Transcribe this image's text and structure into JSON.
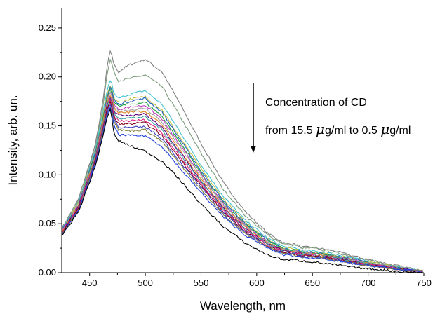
{
  "chart_data": {
    "type": "line",
    "xlabel": "Wavelength, nm",
    "ylabel": "Intensity, arb. un.",
    "xlim": [
      425,
      750
    ],
    "ylim": [
      0.0,
      0.27
    ],
    "x_ticks": [
      450,
      500,
      550,
      600,
      650,
      700,
      750
    ],
    "y_ticks": [
      0.0,
      0.05,
      0.1,
      0.15,
      0.2,
      0.25
    ],
    "x_tick_labels": [
      "450",
      "500",
      "550",
      "600",
      "650",
      "700",
      "750"
    ],
    "y_tick_labels": [
      "0.00",
      "0.05",
      "0.10",
      "0.15",
      "0.20",
      "0.25"
    ],
    "grid": false,
    "legend": "none",
    "annotation": {
      "line1": "Concentration of CD",
      "line2_prefix": "from 15.5 ",
      "mu": "μ",
      "line2_mid": "g/ml to 0.5 ",
      "line2_suffix": "g/ml",
      "arrow_direction": "down"
    },
    "x": [
      425,
      440,
      455,
      462,
      466,
      469,
      472,
      476,
      485,
      500,
      515,
      530,
      550,
      570,
      590,
      610,
      625,
      635,
      640,
      650,
      670,
      690,
      710,
      730,
      750
    ],
    "series": [
      {
        "color": "#808080",
        "values": [
          0.045,
          0.075,
          0.13,
          0.175,
          0.213,
          0.228,
          0.212,
          0.205,
          0.212,
          0.218,
          0.205,
          0.175,
          0.132,
          0.092,
          0.062,
          0.04,
          0.03,
          0.029,
          0.026,
          0.026,
          0.022,
          0.016,
          0.011,
          0.006,
          0.002
        ]
      },
      {
        "color": "#7a9a7a",
        "values": [
          0.045,
          0.073,
          0.127,
          0.17,
          0.205,
          0.219,
          0.205,
          0.196,
          0.198,
          0.202,
          0.19,
          0.162,
          0.122,
          0.085,
          0.058,
          0.038,
          0.029,
          0.028,
          0.025,
          0.025,
          0.021,
          0.015,
          0.01,
          0.006,
          0.002
        ]
      },
      {
        "color": "#40c0d0",
        "values": [
          0.044,
          0.072,
          0.124,
          0.163,
          0.188,
          0.198,
          0.182,
          0.178,
          0.182,
          0.186,
          0.172,
          0.146,
          0.11,
          0.078,
          0.053,
          0.035,
          0.026,
          0.025,
          0.023,
          0.022,
          0.019,
          0.014,
          0.009,
          0.005,
          0.001
        ]
      },
      {
        "color": "#c0c040",
        "values": [
          0.043,
          0.071,
          0.122,
          0.16,
          0.183,
          0.193,
          0.178,
          0.174,
          0.177,
          0.18,
          0.166,
          0.14,
          0.106,
          0.075,
          0.051,
          0.034,
          0.025,
          0.024,
          0.022,
          0.021,
          0.018,
          0.013,
          0.009,
          0.005,
          0.001
        ]
      },
      {
        "color": "#2060c0",
        "values": [
          0.043,
          0.07,
          0.121,
          0.158,
          0.181,
          0.191,
          0.176,
          0.172,
          0.175,
          0.178,
          0.164,
          0.138,
          0.104,
          0.073,
          0.05,
          0.033,
          0.024,
          0.023,
          0.021,
          0.021,
          0.017,
          0.013,
          0.008,
          0.004,
          0.001
        ]
      },
      {
        "color": "#20a040",
        "values": [
          0.042,
          0.069,
          0.12,
          0.157,
          0.18,
          0.189,
          0.174,
          0.17,
          0.172,
          0.174,
          0.16,
          0.135,
          0.102,
          0.071,
          0.049,
          0.032,
          0.024,
          0.023,
          0.021,
          0.02,
          0.017,
          0.012,
          0.008,
          0.004,
          0.001
        ]
      },
      {
        "color": "#c040c0",
        "values": [
          0.042,
          0.069,
          0.119,
          0.155,
          0.178,
          0.187,
          0.171,
          0.167,
          0.169,
          0.171,
          0.157,
          0.132,
          0.1,
          0.07,
          0.048,
          0.031,
          0.023,
          0.022,
          0.02,
          0.02,
          0.016,
          0.012,
          0.008,
          0.004,
          0.001
        ]
      },
      {
        "color": "#a0a0a0",
        "values": [
          0.041,
          0.068,
          0.118,
          0.154,
          0.176,
          0.185,
          0.169,
          0.165,
          0.166,
          0.168,
          0.154,
          0.13,
          0.098,
          0.069,
          0.047,
          0.031,
          0.023,
          0.022,
          0.02,
          0.019,
          0.016,
          0.012,
          0.008,
          0.004,
          0.001
        ]
      },
      {
        "color": "#e08020",
        "values": [
          0.041,
          0.068,
          0.117,
          0.153,
          0.175,
          0.183,
          0.167,
          0.163,
          0.164,
          0.165,
          0.151,
          0.127,
          0.096,
          0.067,
          0.046,
          0.03,
          0.022,
          0.021,
          0.019,
          0.019,
          0.016,
          0.011,
          0.007,
          0.004,
          0.001
        ]
      },
      {
        "color": "#600080",
        "values": [
          0.041,
          0.067,
          0.116,
          0.151,
          0.173,
          0.181,
          0.165,
          0.161,
          0.161,
          0.162,
          0.148,
          0.125,
          0.094,
          0.066,
          0.045,
          0.029,
          0.022,
          0.021,
          0.019,
          0.018,
          0.015,
          0.011,
          0.007,
          0.004,
          0.001
        ]
      },
      {
        "color": "#40a0a0",
        "values": [
          0.04,
          0.066,
          0.115,
          0.15,
          0.171,
          0.179,
          0.163,
          0.158,
          0.158,
          0.159,
          0.146,
          0.123,
          0.093,
          0.065,
          0.044,
          0.029,
          0.021,
          0.02,
          0.018,
          0.018,
          0.015,
          0.011,
          0.007,
          0.003,
          0.001
        ]
      },
      {
        "color": "#e02080",
        "values": [
          0.04,
          0.066,
          0.114,
          0.148,
          0.169,
          0.177,
          0.16,
          0.155,
          0.155,
          0.156,
          0.143,
          0.12,
          0.091,
          0.064,
          0.043,
          0.028,
          0.021,
          0.02,
          0.018,
          0.018,
          0.014,
          0.01,
          0.007,
          0.003,
          0.001
        ]
      },
      {
        "color": "#800020",
        "values": [
          0.04,
          0.065,
          0.113,
          0.147,
          0.168,
          0.175,
          0.158,
          0.152,
          0.152,
          0.153,
          0.14,
          0.118,
          0.089,
          0.062,
          0.042,
          0.027,
          0.02,
          0.019,
          0.017,
          0.017,
          0.014,
          0.01,
          0.006,
          0.003,
          0.001
        ]
      },
      {
        "color": "#4040c0",
        "values": [
          0.039,
          0.064,
          0.112,
          0.145,
          0.166,
          0.173,
          0.156,
          0.149,
          0.148,
          0.149,
          0.137,
          0.115,
          0.087,
          0.061,
          0.041,
          0.026,
          0.02,
          0.019,
          0.017,
          0.016,
          0.013,
          0.009,
          0.006,
          0.003,
          0.001
        ]
      },
      {
        "color": "#808040",
        "values": [
          0.039,
          0.064,
          0.111,
          0.144,
          0.164,
          0.171,
          0.154,
          0.146,
          0.145,
          0.146,
          0.134,
          0.112,
          0.085,
          0.059,
          0.04,
          0.026,
          0.019,
          0.018,
          0.016,
          0.016,
          0.013,
          0.009,
          0.006,
          0.003,
          0.001
        ]
      },
      {
        "color": "#2040e0",
        "values": [
          0.039,
          0.063,
          0.11,
          0.142,
          0.162,
          0.169,
          0.15,
          0.141,
          0.14,
          0.14,
          0.129,
          0.108,
          0.082,
          0.057,
          0.038,
          0.025,
          0.018,
          0.017,
          0.016,
          0.015,
          0.012,
          0.009,
          0.006,
          0.003,
          0.001
        ]
      },
      {
        "color": "#000000",
        "values": [
          0.038,
          0.062,
          0.108,
          0.14,
          0.159,
          0.168,
          0.14,
          0.135,
          0.13,
          0.124,
          0.114,
          0.096,
          0.07,
          0.047,
          0.03,
          0.018,
          0.013,
          0.013,
          0.012,
          0.011,
          0.008,
          0.005,
          0.003,
          0.001,
          0.0
        ]
      }
    ]
  }
}
